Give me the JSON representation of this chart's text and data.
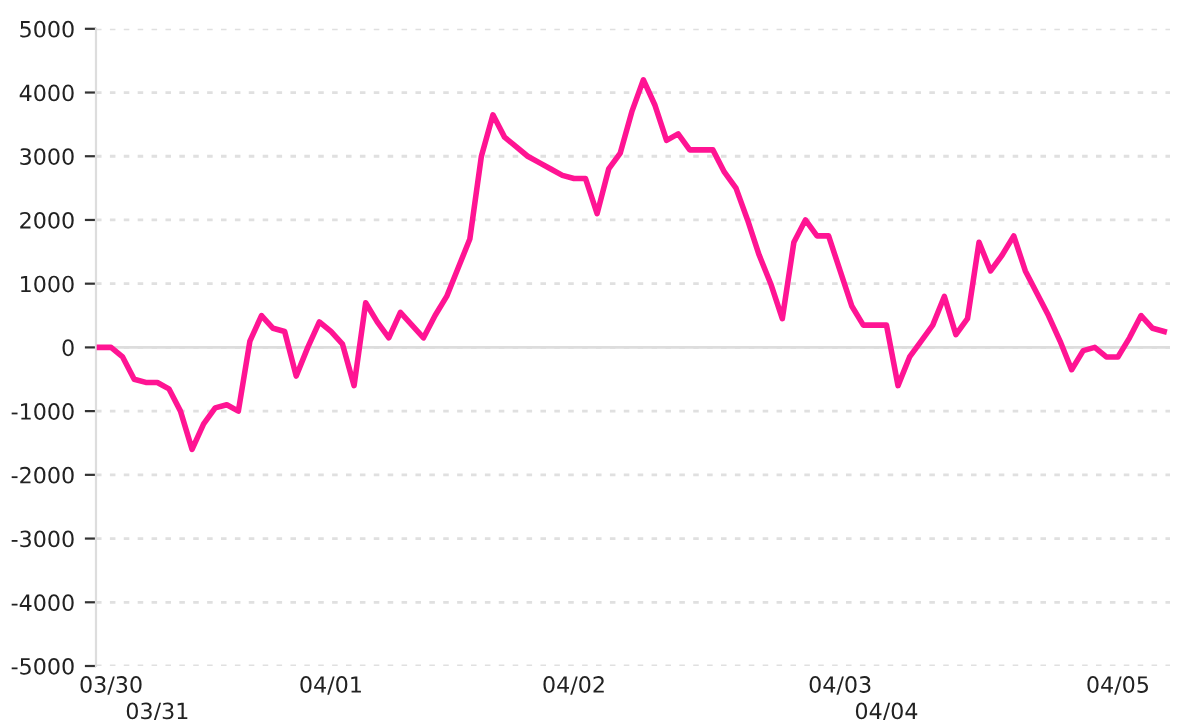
{
  "chart_data": {
    "type": "line",
    "categories": [
      null,
      "03/30",
      null,
      null,
      null,
      "03/31",
      null,
      null,
      null,
      null,
      null,
      null,
      null,
      null,
      null,
      null,
      null,
      null,
      null,
      null,
      "04/01",
      null,
      null,
      null,
      null,
      null,
      null,
      null,
      null,
      null,
      null,
      null,
      null,
      null,
      null,
      null,
      null,
      null,
      null,
      null,
      null,
      "04/02",
      null,
      null,
      null,
      null,
      null,
      null,
      null,
      null,
      null,
      null,
      null,
      null,
      null,
      null,
      null,
      null,
      null,
      null,
      null,
      null,
      null,
      null,
      "04/03",
      null,
      null,
      null,
      "04/04",
      null,
      null,
      null,
      null,
      null,
      null,
      null,
      null,
      null,
      null,
      null,
      null,
      null,
      null,
      null,
      null,
      null,
      null,
      null,
      "04/05",
      null,
      null,
      null,
      null
    ],
    "series": [
      {
        "color": "#ff1493",
        "values": [
          0,
          0,
          -150,
          -500,
          -550,
          -550,
          -650,
          -1000,
          -1600,
          -1200,
          -950,
          -900,
          -1000,
          100,
          500,
          300,
          250,
          -450,
          0,
          400,
          250,
          50,
          -600,
          700,
          400,
          150,
          550,
          350,
          150,
          500,
          800,
          1250,
          1700,
          3000,
          3650,
          3300,
          3150,
          3000,
          2900,
          2800,
          2700,
          2650,
          2650,
          2100,
          2800,
          3050,
          3700,
          4200,
          3800,
          3250,
          3350,
          3100,
          3100,
          3100,
          2750,
          2500,
          2000,
          1450,
          1000,
          450,
          1650,
          2000,
          1750,
          1750,
          1200,
          650,
          350,
          350,
          350,
          -600,
          -150,
          100,
          350,
          800,
          200,
          450,
          1650,
          1200,
          1450,
          1750,
          1200,
          850,
          500,
          100,
          -350,
          -50,
          0,
          -150,
          -150,
          150,
          500,
          300,
          250
        ]
      }
    ],
    "ylim": [
      -5000,
      5000
    ],
    "yticks": [
      -5000,
      -4000,
      -3000,
      -2000,
      -1000,
      0,
      1000,
      2000,
      3000,
      4000,
      5000
    ],
    "grid": "y",
    "legend": false,
    "marker": "none",
    "line_style": "solid",
    "ref_lines": [
      {
        "axis": "y",
        "value": 0,
        "color": "#dddddd",
        "line_style": "solid"
      }
    ]
  }
}
